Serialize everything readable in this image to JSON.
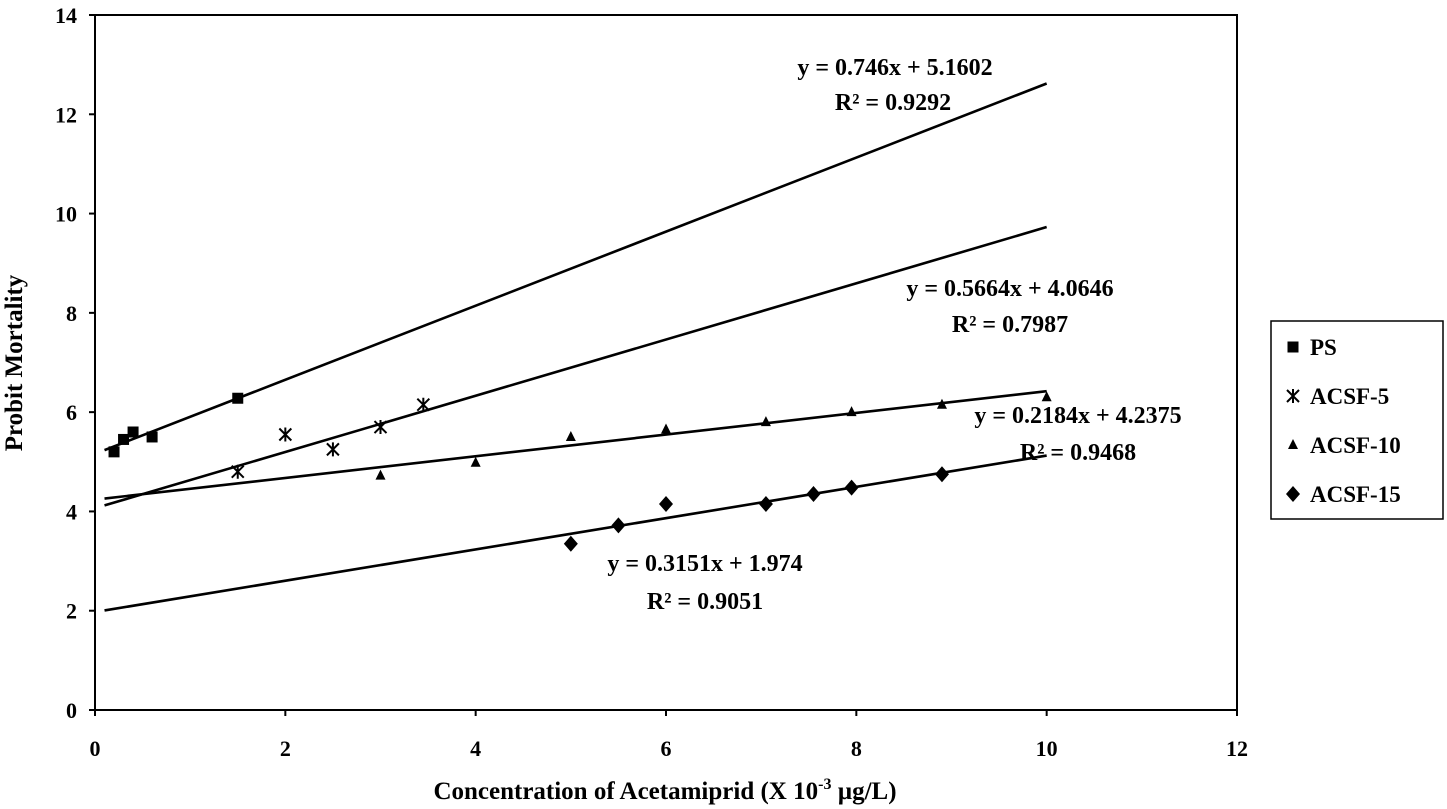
{
  "chart_data": {
    "type": "scatter",
    "title": "",
    "xlabel": "Concentration of Acetamiprid (X 10",
    "xlabel_sup": "-3",
    "xlabel_tail": " µg/L)",
    "ylabel": "Probit Mortality",
    "xlim": [
      0,
      12
    ],
    "ylim": [
      0,
      14
    ],
    "x_ticks": [
      "0",
      "2",
      "4",
      "6",
      "8",
      "10",
      "12"
    ],
    "y_ticks": [
      "0",
      "2",
      "4",
      "6",
      "8",
      "10",
      "12",
      "14"
    ],
    "grid": false,
    "legend_position": "right",
    "series": [
      {
        "name": "PS",
        "marker": "square",
        "points": [
          [
            0.2,
            5.2
          ],
          [
            0.3,
            5.45
          ],
          [
            0.4,
            5.6
          ],
          [
            0.6,
            5.5
          ],
          [
            1.5,
            6.28
          ]
        ],
        "trendline": {
          "slope": 0.746,
          "intercept": 5.1602,
          "x_range": [
            0.1,
            10
          ]
        },
        "equation": "y = 0.746x + 5.1602",
        "r2": "R² = 0.9292"
      },
      {
        "name": "ACSF-5",
        "marker": "asterisk",
        "points": [
          [
            1.5,
            4.8
          ],
          [
            2.0,
            5.55
          ],
          [
            2.5,
            5.25
          ],
          [
            3.0,
            5.7
          ],
          [
            3.45,
            6.15
          ]
        ],
        "trendline": {
          "slope": 0.5664,
          "intercept": 4.0646,
          "x_range": [
            0.1,
            10
          ]
        },
        "equation": "y = 0.5664x + 4.0646",
        "r2": "R² = 0.7987"
      },
      {
        "name": "ACSF-10",
        "marker": "triangle",
        "points": [
          [
            3.0,
            4.72
          ],
          [
            4.0,
            4.98
          ],
          [
            5.0,
            5.5
          ],
          [
            6.0,
            5.65
          ],
          [
            7.05,
            5.8
          ],
          [
            7.95,
            6.0
          ],
          [
            8.9,
            6.15
          ],
          [
            10.0,
            6.3
          ]
        ],
        "trendline": {
          "slope": 0.2184,
          "intercept": 4.2375,
          "x_range": [
            0.1,
            10
          ]
        },
        "equation": "y = 0.2184x + 4.2375",
        "r2": "R² = 0.9468"
      },
      {
        "name": "ACSF-15",
        "marker": "diamond",
        "points": [
          [
            5.0,
            3.35
          ],
          [
            5.5,
            3.72
          ],
          [
            6.0,
            4.15
          ],
          [
            7.05,
            4.15
          ],
          [
            7.55,
            4.35
          ],
          [
            7.95,
            4.48
          ],
          [
            8.9,
            4.75
          ]
        ],
        "trendline": {
          "slope": 0.3151,
          "intercept": 1.974,
          "x_range": [
            0.1,
            10
          ]
        },
        "equation": "y = 0.3151x + 1.974",
        "r2": "R² = 0.9051"
      }
    ]
  }
}
